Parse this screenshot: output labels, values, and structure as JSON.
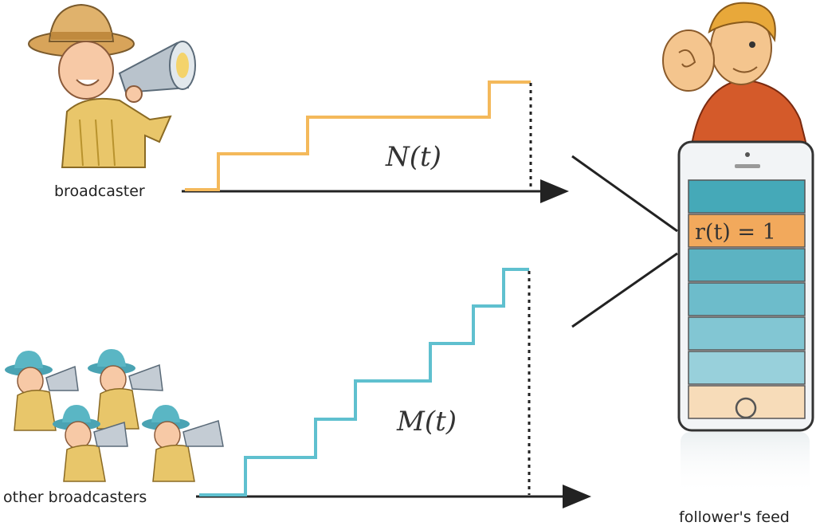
{
  "diagram": {
    "broadcaster_label": "broadcaster",
    "others_label": "other broadcasters",
    "follower_label": "follower's feed",
    "top_process_label": "N(t)",
    "bottom_process_label": "M(t)",
    "feed_highlight_label": "r(t) = 1",
    "feed_rows": 7,
    "highlight_row_index": 1,
    "colors": {
      "top_process": "#f4b95b",
      "bottom_process": "#5fc0cf",
      "axis": "#222222",
      "highlight": "#f2a95c",
      "feed_top": "#4aa9b8",
      "feed_bottom": "#c9e4ec",
      "home_row": "#f7dcb9"
    },
    "icons": [
      "megaphone-person-icon",
      "listening-person-icon",
      "smartphone-icon"
    ]
  }
}
